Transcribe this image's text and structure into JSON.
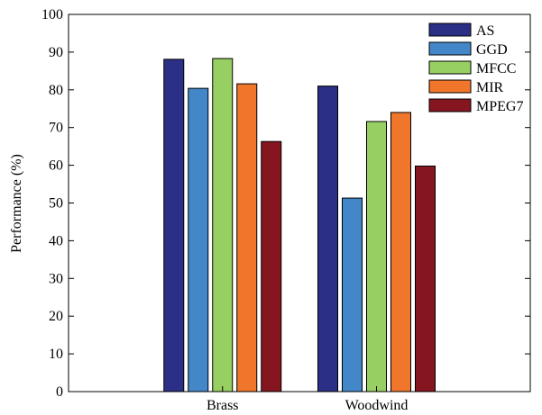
{
  "chart_data": {
    "type": "bar",
    "categories": [
      "Brass",
      "Woodwind"
    ],
    "series": [
      {
        "name": "AS",
        "color": "#2b2f85",
        "values": [
          88.1,
          81.0
        ]
      },
      {
        "name": "GGD",
        "color": "#4487c9",
        "values": [
          80.4,
          51.3
        ]
      },
      {
        "name": "MFCC",
        "color": "#98cf62",
        "values": [
          88.3,
          71.6
        ]
      },
      {
        "name": "MIR",
        "color": "#f0762b",
        "values": [
          81.6,
          74.0
        ]
      },
      {
        "name": "MPEG7",
        "color": "#851620",
        "values": [
          66.3,
          59.8
        ]
      }
    ],
    "ylabel": "Performance (%)",
    "ylim": [
      0,
      100
    ],
    "yticks": [
      "0",
      "10",
      "20",
      "30",
      "40",
      "50",
      "60",
      "70",
      "80",
      "90",
      "100"
    ],
    "grid": false,
    "legend_position": "top-right"
  }
}
